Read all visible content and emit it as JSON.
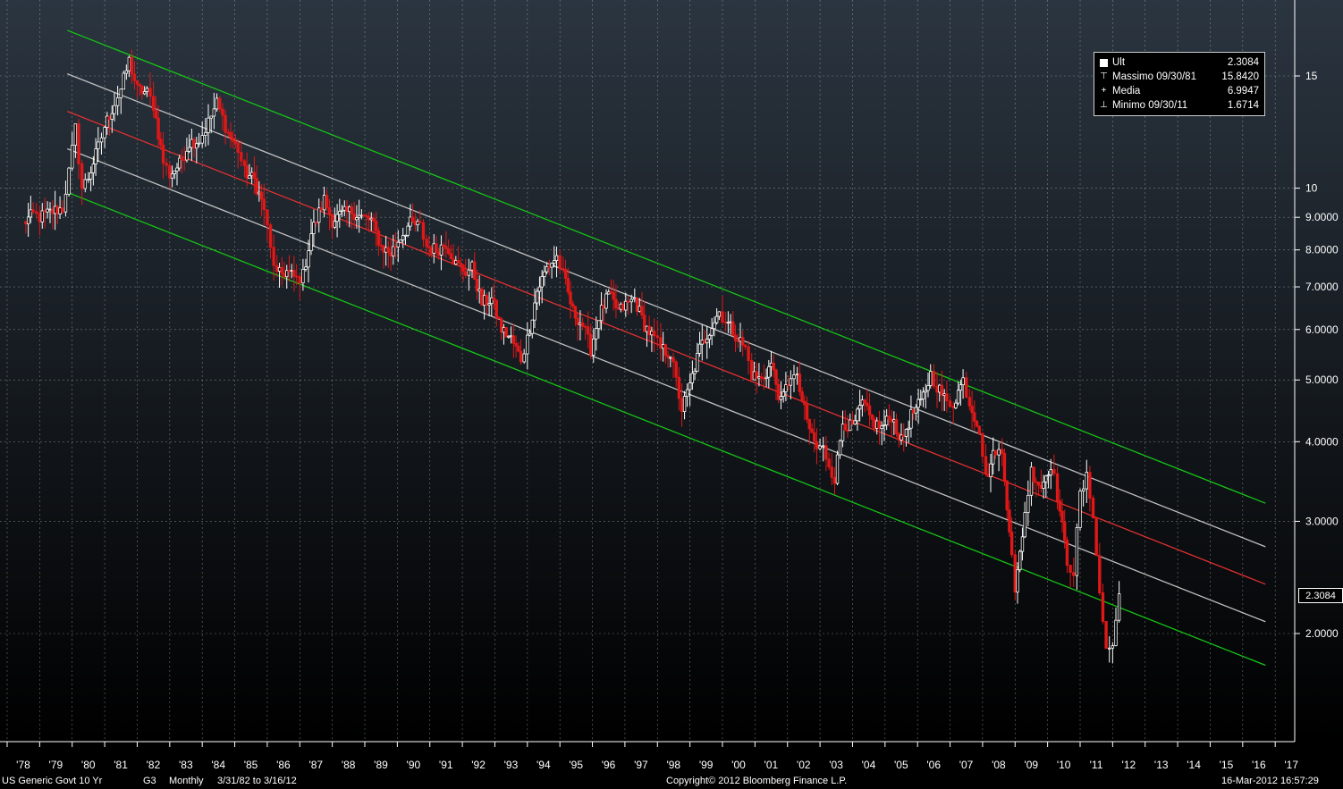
{
  "chart_data": {
    "type": "candlestick",
    "ylog": true,
    "ylim": [
      1.5,
      18
    ],
    "xlim": [
      1978.0,
      2017.6
    ],
    "yticks": [
      {
        "value": 15,
        "label": "15"
      },
      {
        "value": 10,
        "label": "10"
      },
      {
        "value": 9,
        "label": "9.0000"
      },
      {
        "value": 8,
        "label": "8.0000"
      },
      {
        "value": 7,
        "label": "7.0000"
      },
      {
        "value": 6,
        "label": "6.0000"
      },
      {
        "value": 5,
        "label": "5.0000"
      },
      {
        "value": 4,
        "label": "4.0000"
      },
      {
        "value": 3,
        "label": "3.0000"
      },
      {
        "value": 2,
        "label": "2.0000"
      }
    ],
    "xticks": [
      {
        "value": 1978,
        "label": "'78"
      },
      {
        "value": 1979,
        "label": "'79"
      },
      {
        "value": 1980,
        "label": "'80"
      },
      {
        "value": 1981,
        "label": "'81"
      },
      {
        "value": 1982,
        "label": "'82"
      },
      {
        "value": 1983,
        "label": "'83"
      },
      {
        "value": 1984,
        "label": "'84"
      },
      {
        "value": 1985,
        "label": "'85"
      },
      {
        "value": 1986,
        "label": "'86"
      },
      {
        "value": 1987,
        "label": "'87"
      },
      {
        "value": 1988,
        "label": "'88"
      },
      {
        "value": 1989,
        "label": "'89"
      },
      {
        "value": 1990,
        "label": "'90"
      },
      {
        "value": 1991,
        "label": "'91"
      },
      {
        "value": 1992,
        "label": "'92"
      },
      {
        "value": 1993,
        "label": "'93"
      },
      {
        "value": 1994,
        "label": "'94"
      },
      {
        "value": 1995,
        "label": "'95"
      },
      {
        "value": 1996,
        "label": "'96"
      },
      {
        "value": 1997,
        "label": "'97"
      },
      {
        "value": 1998,
        "label": "'98"
      },
      {
        "value": 1999,
        "label": "'99"
      },
      {
        "value": 2000,
        "label": "'00"
      },
      {
        "value": 2001,
        "label": "'01"
      },
      {
        "value": 2002,
        "label": "'02"
      },
      {
        "value": 2003,
        "label": "'03"
      },
      {
        "value": 2004,
        "label": "'04"
      },
      {
        "value": 2005,
        "label": "'05"
      },
      {
        "value": 2006,
        "label": "'06"
      },
      {
        "value": 2007,
        "label": "'07"
      },
      {
        "value": 2008,
        "label": "'08"
      },
      {
        "value": 2009,
        "label": "'09"
      },
      {
        "value": 2010,
        "label": "'10"
      },
      {
        "value": 2011,
        "label": "'11"
      },
      {
        "value": 2012,
        "label": "'12"
      },
      {
        "value": 2013,
        "label": "'13"
      },
      {
        "value": 2014,
        "label": "'14"
      },
      {
        "value": 2015,
        "label": "'15"
      },
      {
        "value": 2016,
        "label": "'16"
      },
      {
        "value": 2017,
        "label": "'17"
      }
    ],
    "grid": true,
    "series_color_up": "#ffffff",
    "series_color_down": "#e01818",
    "closes": [
      [
        1978.5,
        8.8
      ],
      [
        1978.8,
        9.1
      ],
      [
        1979.0,
        9.0
      ],
      [
        1979.4,
        9.2
      ],
      [
        1979.7,
        9.3
      ],
      [
        1979.9,
        10.6
      ],
      [
        1980.1,
        12.4
      ],
      [
        1980.3,
        10.0
      ],
      [
        1980.5,
        10.4
      ],
      [
        1980.8,
        11.6
      ],
      [
        1981.0,
        12.5
      ],
      [
        1981.3,
        13.6
      ],
      [
        1981.5,
        14.3
      ],
      [
        1981.75,
        15.84
      ],
      [
        1982.0,
        14.3
      ],
      [
        1982.3,
        14.1
      ],
      [
        1982.5,
        13.5
      ],
      [
        1982.8,
        11.0
      ],
      [
        1983.0,
        10.5
      ],
      [
        1983.3,
        10.9
      ],
      [
        1983.6,
        11.8
      ],
      [
        1983.9,
        11.9
      ],
      [
        1984.1,
        12.4
      ],
      [
        1984.45,
        13.6
      ],
      [
        1984.8,
        12.2
      ],
      [
        1985.1,
        11.5
      ],
      [
        1985.3,
        10.6
      ],
      [
        1985.6,
        10.3
      ],
      [
        1985.9,
        9.3
      ],
      [
        1986.1,
        8.0
      ],
      [
        1986.3,
        7.3
      ],
      [
        1986.6,
        7.4
      ],
      [
        1986.9,
        7.2
      ],
      [
        1987.1,
        7.3
      ],
      [
        1987.35,
        8.5
      ],
      [
        1987.75,
        9.6
      ],
      [
        1988.0,
        8.9
      ],
      [
        1988.3,
        9.1
      ],
      [
        1988.6,
        9.2
      ],
      [
        1988.9,
        9.0
      ],
      [
        1989.2,
        8.9
      ],
      [
        1989.5,
        8.1
      ],
      [
        1989.8,
        7.9
      ],
      [
        1990.1,
        8.4
      ],
      [
        1990.4,
        8.8
      ],
      [
        1990.7,
        8.7
      ],
      [
        1990.9,
        8.1
      ],
      [
        1991.2,
        8.0
      ],
      [
        1991.5,
        8.2
      ],
      [
        1991.8,
        7.6
      ],
      [
        1992.1,
        7.4
      ],
      [
        1992.3,
        7.5
      ],
      [
        1992.6,
        6.6
      ],
      [
        1992.9,
        6.7
      ],
      [
        1993.2,
        6.0
      ],
      [
        1993.5,
        5.8
      ],
      [
        1993.8,
        5.4
      ],
      [
        1994.0,
        5.8
      ],
      [
        1994.3,
        6.9
      ],
      [
        1994.6,
        7.5
      ],
      [
        1994.9,
        7.8
      ],
      [
        1995.1,
        7.3
      ],
      [
        1995.4,
        6.4
      ],
      [
        1995.7,
        6.1
      ],
      [
        1995.95,
        5.6
      ],
      [
        1996.2,
        6.3
      ],
      [
        1996.5,
        6.8
      ],
      [
        1996.8,
        6.4
      ],
      [
        1997.1,
        6.6
      ],
      [
        1997.3,
        6.7
      ],
      [
        1997.6,
        6.1
      ],
      [
        1997.9,
        5.8
      ],
      [
        1998.1,
        5.6
      ],
      [
        1998.4,
        5.5
      ],
      [
        1998.75,
        4.5
      ],
      [
        1999.0,
        4.9
      ],
      [
        1999.3,
        5.6
      ],
      [
        1999.6,
        6.0
      ],
      [
        1999.9,
        6.4
      ],
      [
        2000.1,
        6.2
      ],
      [
        2000.4,
        5.9
      ],
      [
        2000.7,
        5.6
      ],
      [
        2000.9,
        5.1
      ],
      [
        2001.2,
        5.0
      ],
      [
        2001.5,
        5.3
      ],
      [
        2001.8,
        4.6
      ],
      [
        2002.1,
        5.1
      ],
      [
        2002.3,
        5.0
      ],
      [
        2002.6,
        4.3
      ],
      [
        2002.9,
        3.9
      ],
      [
        2003.1,
        3.9
      ],
      [
        2003.45,
        3.5
      ],
      [
        2003.7,
        4.3
      ],
      [
        2004.0,
        4.2
      ],
      [
        2004.3,
        4.6
      ],
      [
        2004.6,
        4.3
      ],
      [
        2004.9,
        4.2
      ],
      [
        2005.2,
        4.4
      ],
      [
        2005.5,
        4.0
      ],
      [
        2005.8,
        4.4
      ],
      [
        2006.1,
        4.6
      ],
      [
        2006.4,
        5.1
      ],
      [
        2006.6,
        4.9
      ],
      [
        2006.9,
        4.6
      ],
      [
        2007.1,
        4.6
      ],
      [
        2007.4,
        5.0
      ],
      [
        2007.6,
        4.6
      ],
      [
        2007.9,
        4.2
      ],
      [
        2008.1,
        3.5
      ],
      [
        2008.4,
        3.9
      ],
      [
        2008.6,
        3.8
      ],
      [
        2008.9,
        2.7
      ],
      [
        2009.0,
        2.3
      ],
      [
        2009.3,
        3.1
      ],
      [
        2009.5,
        3.6
      ],
      [
        2009.8,
        3.4
      ],
      [
        2010.1,
        3.7
      ],
      [
        2010.3,
        3.3
      ],
      [
        2010.6,
        2.6
      ],
      [
        2010.8,
        2.5
      ],
      [
        2011.0,
        3.3
      ],
      [
        2011.2,
        3.5
      ],
      [
        2011.4,
        3.1
      ],
      [
        2011.6,
        2.3
      ],
      [
        2011.8,
        1.9
      ],
      [
        2012.0,
        1.9
      ],
      [
        2012.2,
        2.3084
      ]
    ],
    "channel": {
      "start_x": 1979.85,
      "end_x": 2016.7,
      "mid_start": 13.2,
      "mid_end": 2.39,
      "inner_factor": 1.145,
      "outer_factor": 1.34
    },
    "legend": [
      {
        "icon": "square",
        "label": "Ult",
        "value": "2.3084"
      },
      {
        "icon": "max",
        "label": "Massimo 09/30/81",
        "value": "15.8420"
      },
      {
        "icon": "avg",
        "label": "Media",
        "value": "6.9947"
      },
      {
        "icon": "min",
        "label": "Minimo 09/30/11",
        "value": "1.6714"
      }
    ],
    "last_value_tag": "2.3084"
  },
  "footer": {
    "security": "US Generic Govt 10 Yr",
    "chart_code": "G3",
    "period": "Monthly",
    "range": "3/31/82 to 3/16/12",
    "copyright": "Copyright© 2012 Bloomberg Finance L.P.",
    "timestamp": "16-Mar-2012 16:57:29"
  },
  "colors": {
    "bg_top": "#2b3540",
    "bg_bottom": "#000000",
    "grid": "#c8c8c8",
    "channel_outer": "#16c416",
    "channel_inner": "#c0c0c0",
    "channel_mid": "#e03030"
  }
}
